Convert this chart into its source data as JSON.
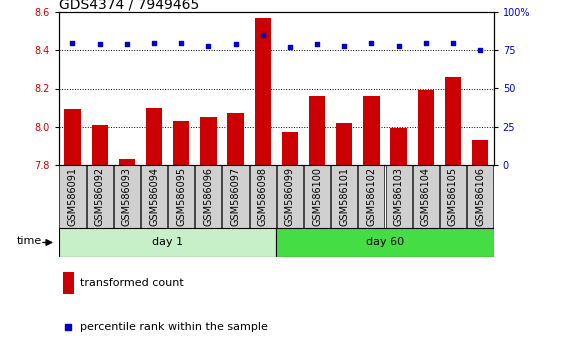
{
  "title": "GDS4374 / 7949465",
  "samples": [
    "GSM586091",
    "GSM586092",
    "GSM586093",
    "GSM586094",
    "GSM586095",
    "GSM586096",
    "GSM586097",
    "GSM586098",
    "GSM586099",
    "GSM586100",
    "GSM586101",
    "GSM586102",
    "GSM586103",
    "GSM586104",
    "GSM586105",
    "GSM586106"
  ],
  "transformed_count": [
    8.09,
    8.01,
    7.83,
    8.1,
    8.03,
    8.05,
    8.07,
    8.57,
    7.97,
    8.16,
    8.02,
    8.16,
    7.99,
    8.19,
    8.26,
    7.93
  ],
  "percentile_rank": [
    80,
    79,
    79,
    80,
    80,
    78,
    79,
    85,
    77,
    79,
    78,
    80,
    78,
    80,
    80,
    75
  ],
  "ylim_left": [
    7.8,
    8.6
  ],
  "ylim_right": [
    0,
    100
  ],
  "yticks_left": [
    7.8,
    8.0,
    8.2,
    8.4,
    8.6
  ],
  "yticks_right": [
    0,
    25,
    50,
    75,
    100
  ],
  "bar_color": "#cc0000",
  "dot_color": "#0000cc",
  "day1_label": "day 1",
  "day60_label": "day 60",
  "time_label": "time",
  "legend_bar_label": "transformed count",
  "legend_dot_label": "percentile rank within the sample",
  "day1_color": "#c8f0c8",
  "day60_color": "#44dd44",
  "sample_bg_color": "#d0d0d0",
  "title_fontsize": 10,
  "label_fontsize": 7,
  "bar_width": 0.6,
  "n_day1": 8,
  "n_day2": 8
}
